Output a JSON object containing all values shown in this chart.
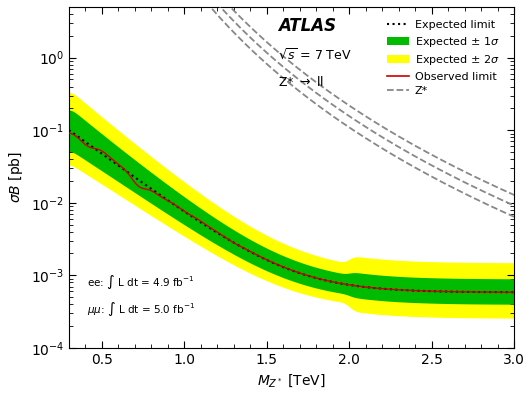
{
  "title": "ATLAS",
  "subtitle1": "\\sqrt{s} = 7 TeV",
  "subtitle2": "Z* \\rightarrow ll",
  "xlabel": "M_{Z*} [TeV]",
  "ylabel": "\\sigma B [pb]",
  "xlim": [
    0.3,
    3.0
  ],
  "ylim": [
    0.0001,
    5.0
  ],
  "band2sigma_color": "#ffff00",
  "band1sigma_color": "#00bb00",
  "expected_color": "black",
  "observed_color": "#cc0000",
  "zstar_color": "#888888",
  "background_color": "#ffffff"
}
